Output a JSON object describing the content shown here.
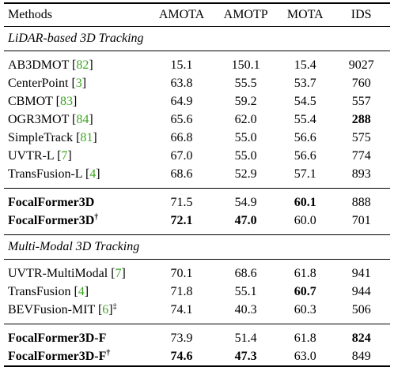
{
  "header": {
    "method": "Methods",
    "amota": "AMOTA",
    "amotp": "AMOTP",
    "mota": "MOTA",
    "ids": "IDS"
  },
  "lidar_section": {
    "title": "LiDAR-based 3D Tracking",
    "rows": [
      {
        "name": "AB3DMOT",
        "ref": "82",
        "amota": "15.1",
        "amotp": "150.1",
        "mota": "15.4",
        "ids": "9027"
      },
      {
        "name": "CenterPoint",
        "ref": "3",
        "amota": "63.8",
        "amotp": "55.5",
        "mota": "53.7",
        "ids": "760"
      },
      {
        "name": "CBMOT",
        "ref": "83",
        "amota": "64.9",
        "amotp": "59.2",
        "mota": "54.5",
        "ids": "557"
      },
      {
        "name": "OGR3MOT",
        "ref": "84",
        "amota": "65.6",
        "amotp": "62.0",
        "mota": "55.4",
        "ids": "288"
      },
      {
        "name": "SimpleTrack",
        "ref": "81",
        "amota": "66.8",
        "amotp": "55.0",
        "mota": "56.6",
        "ids": "575"
      },
      {
        "name": "UVTR-L",
        "ref": "7",
        "amota": "67.0",
        "amotp": "55.0",
        "mota": "56.6",
        "ids": "774"
      },
      {
        "name": "TransFusion-L",
        "ref": "4",
        "amota": "68.6",
        "amotp": "52.9",
        "mota": "57.1",
        "ids": "893"
      }
    ],
    "ours": [
      {
        "name": "FocalFormer3D",
        "mark": "",
        "amota": "71.5",
        "amotp": "54.9",
        "mota": "60.1",
        "ids": "888"
      },
      {
        "name": "FocalFormer3D",
        "mark": "†",
        "amota": "72.1",
        "amotp": "47.0",
        "mota": "60.0",
        "ids": "701"
      }
    ]
  },
  "multimodal_section": {
    "title": "Multi-Modal 3D Tracking",
    "rows": [
      {
        "name": "UVTR-MultiModal",
        "ref": "7",
        "mark": "",
        "amota": "70.1",
        "amotp": "68.6",
        "mota": "61.8",
        "ids": "941"
      },
      {
        "name": "TransFusion",
        "ref": "4",
        "mark": "",
        "amota": "71.8",
        "amotp": "55.1",
        "mota": "60.7",
        "ids": "944"
      },
      {
        "name": "BEVFusion-MIT",
        "ref": "6",
        "mark": "‡",
        "amota": "74.1",
        "amotp": "40.3",
        "mota": "60.3",
        "ids": "506"
      }
    ],
    "ours": [
      {
        "name": "FocalFormer3D-F",
        "mark": "",
        "amota": "73.9",
        "amotp": "51.4",
        "mota": "61.8",
        "ids": "824"
      },
      {
        "name": "FocalFormer3D-F",
        "mark": "†",
        "amota": "74.6",
        "amotp": "47.3",
        "mota": "63.0",
        "ids": "849"
      }
    ]
  },
  "colors": {
    "reference_link": "#3aa61e",
    "text": "#000000"
  }
}
